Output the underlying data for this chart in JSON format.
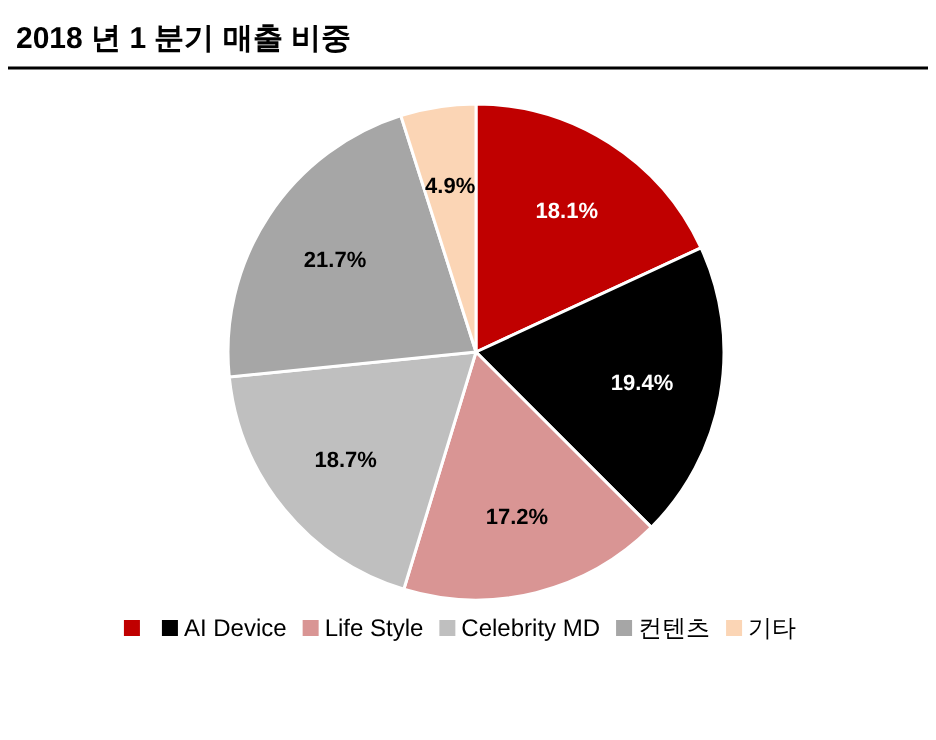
{
  "chart_data": {
    "type": "pie",
    "title": "2018 년 1 분기 매출 비중",
    "categories": [
      null,
      "AI Device",
      "Life Style",
      "Celebrity MD",
      "컨텐츠",
      "기타"
    ],
    "values": [
      18.1,
      19.4,
      17.2,
      18.7,
      21.7,
      4.9
    ],
    "colors": [
      "#c00000",
      "#000000",
      "#d99594",
      "#bfbfbf",
      "#a6a6a6",
      "#fbd5b5"
    ],
    "value_labels": [
      "18.1%",
      "19.4%",
      "17.2%",
      "18.7%",
      "21.7%",
      "4.9%"
    ],
    "legend": "bottom"
  }
}
